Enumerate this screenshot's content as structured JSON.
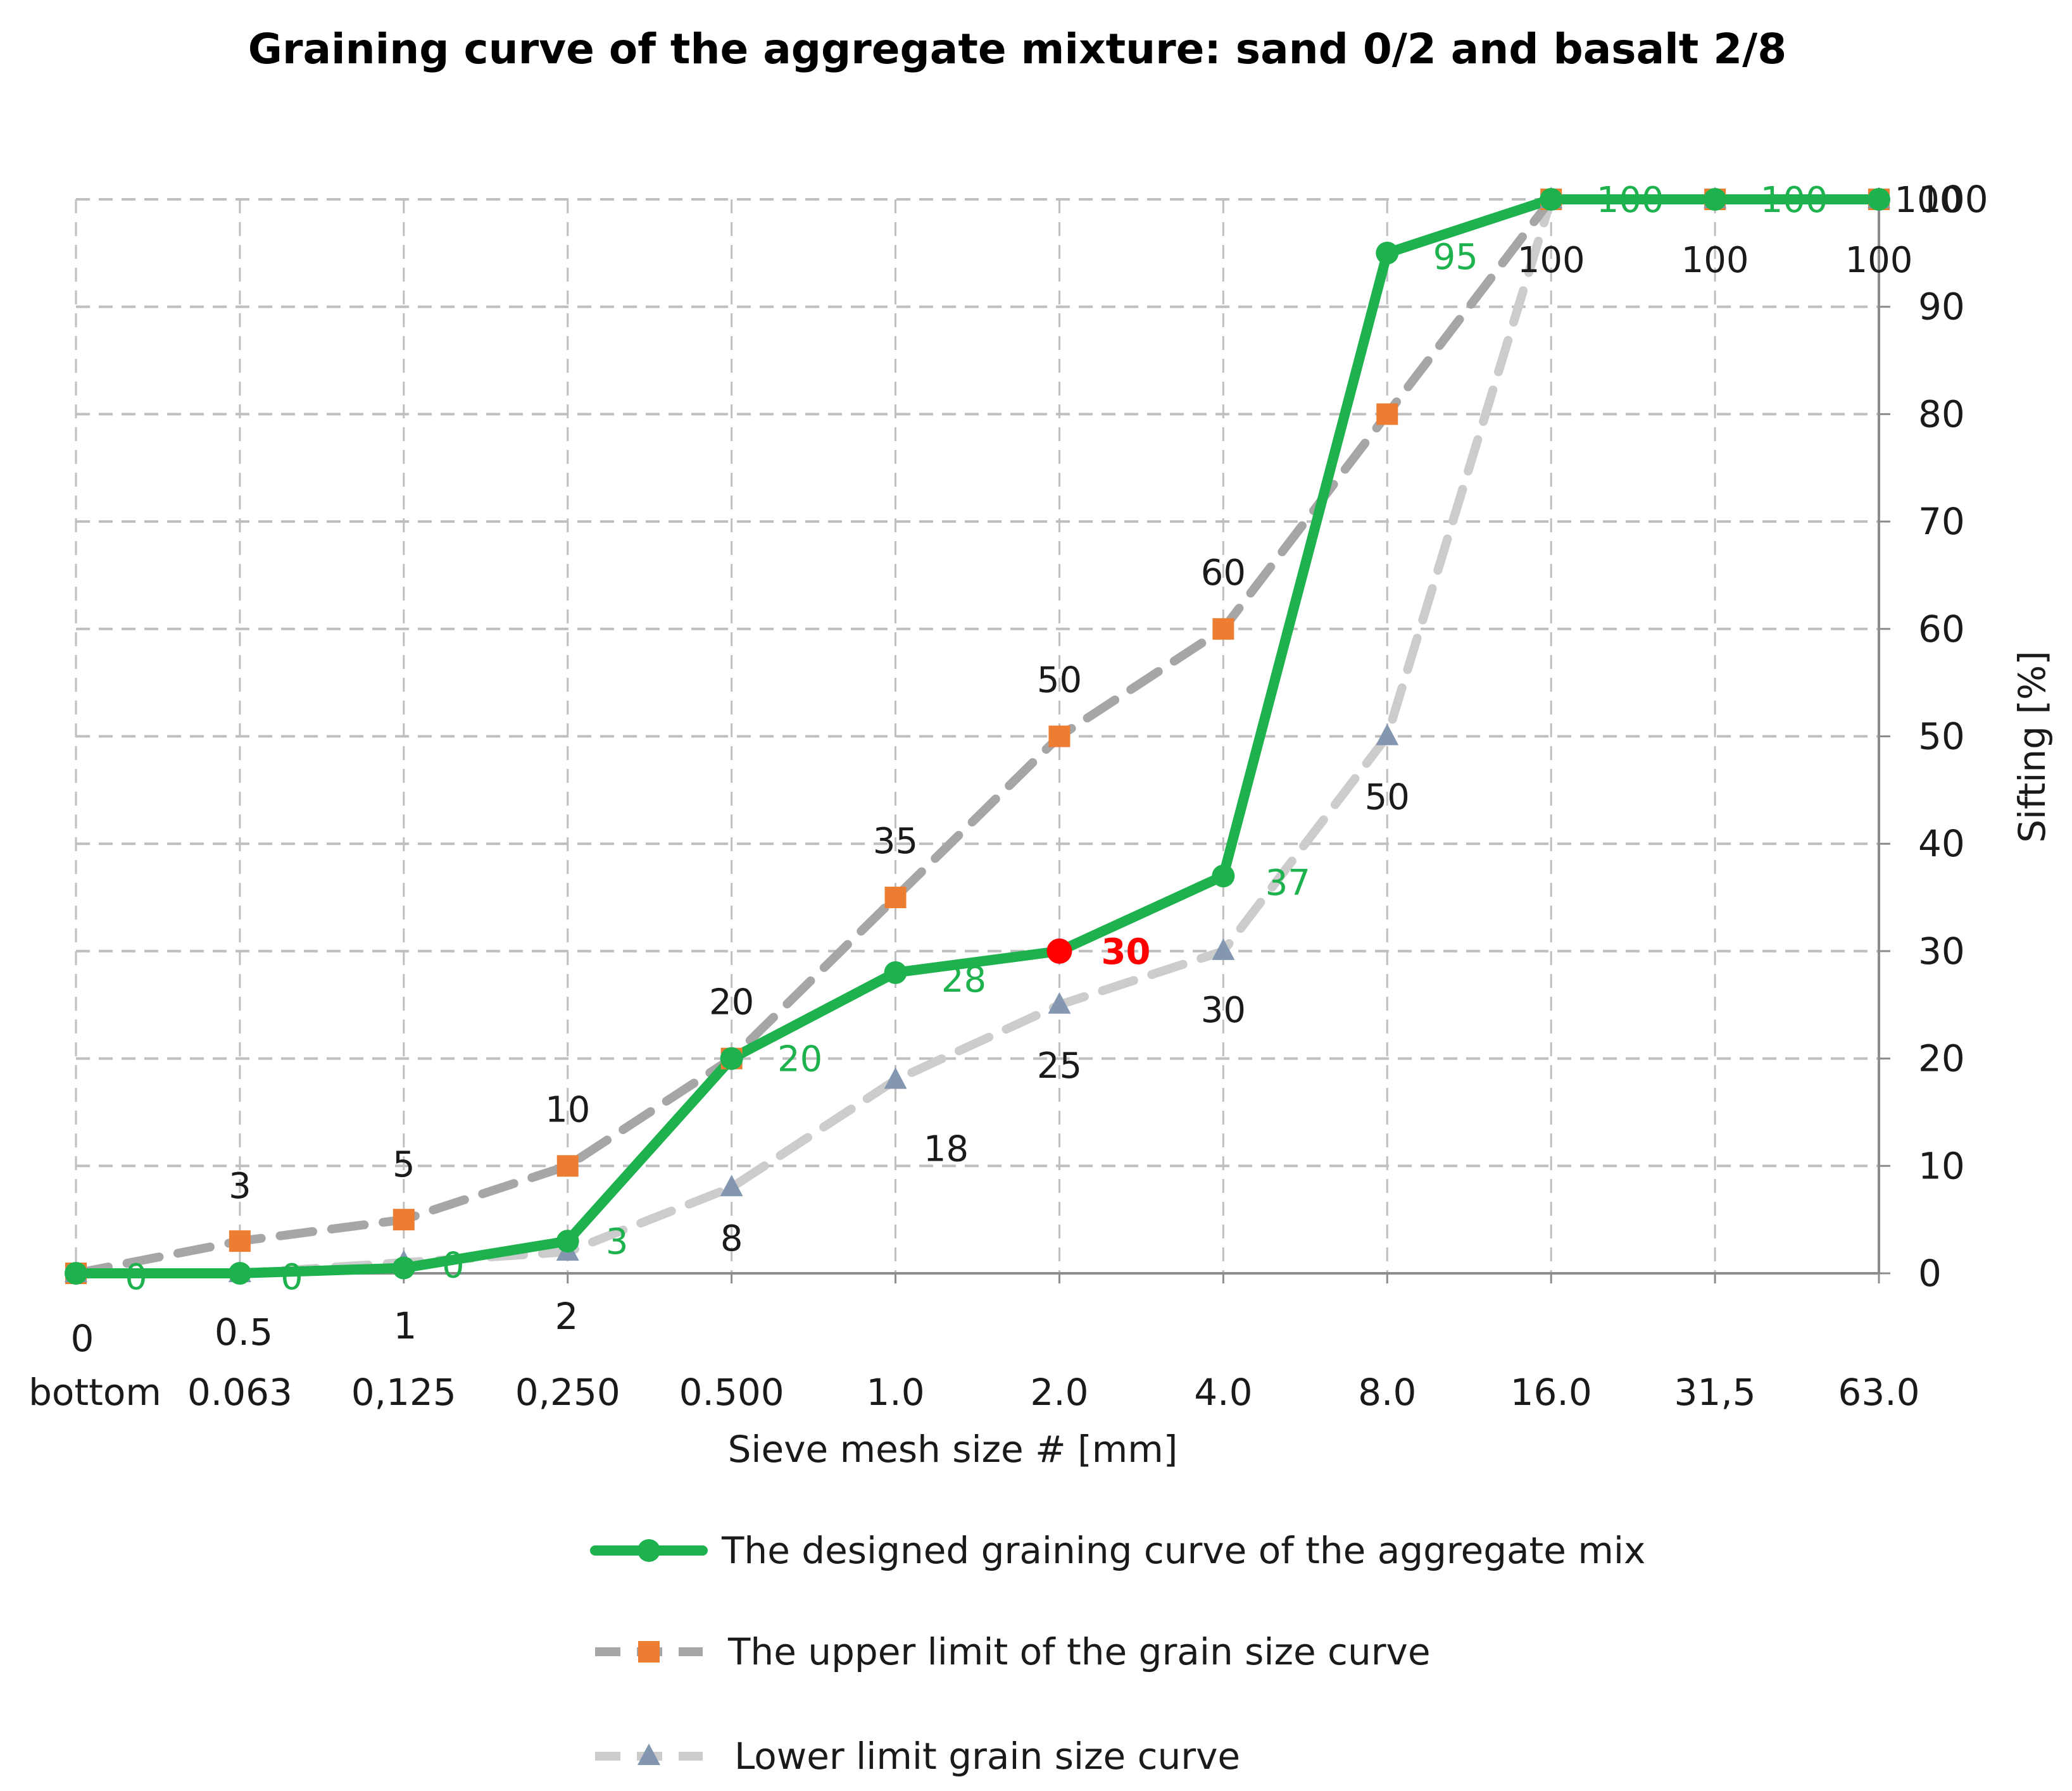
{
  "chart_data": {
    "type": "line",
    "title": "Graining curve of the aggregate mixture: sand 0/2 and basalt 2/8",
    "xlabel": "Sieve mesh size # [mm]",
    "ylabel": "Sifting [%]",
    "ylim": [
      0,
      100
    ],
    "yticks": [
      0,
      10,
      20,
      30,
      40,
      50,
      60,
      70,
      80,
      90,
      100
    ],
    "grid": true,
    "legend_position": "bottom",
    "categories": [
      "bottom",
      "0.063",
      "0,125",
      "0,250",
      "0.500",
      "1.0",
      "2.0",
      "4.0",
      "8.0",
      "16.0",
      "31,5",
      "63.0"
    ],
    "category_index_labels": [
      "0",
      "0.5",
      "1",
      "2"
    ],
    "series": [
      {
        "name": "The designed graining curve of the aggregate mix",
        "color": "#1db24d",
        "marker": "circle",
        "style": "solid",
        "values": [
          0,
          0,
          0.5,
          3,
          20,
          28,
          30,
          37,
          95,
          100,
          100,
          100
        ],
        "labels": [
          "0",
          "0",
          "0",
          "3",
          "20",
          "28",
          "30",
          "37",
          "95",
          "100",
          "100",
          ""
        ],
        "highlight": {
          "index": 6,
          "color": "#ff0000"
        }
      },
      {
        "name": "The upper limit of the grain size curve",
        "color": "#a6a6a6",
        "marker_color": "#ed7d31",
        "marker": "square",
        "style": "dashed",
        "values": [
          0,
          3,
          5,
          10,
          20,
          35,
          50,
          60,
          80,
          100,
          100,
          100
        ],
        "labels": [
          "",
          "3",
          "5",
          "10",
          "20",
          "35",
          "50",
          "60",
          "",
          "",
          "",
          "100"
        ]
      },
      {
        "name": "Lower limit grain size curve",
        "color": "#cccccc",
        "marker_color": "#8497b0",
        "marker": "triangle",
        "style": "dashed",
        "values": [
          0,
          0,
          1,
          2,
          8,
          18,
          25,
          30,
          50,
          100,
          100,
          100
        ],
        "labels": [
          "",
          "",
          "",
          "",
          "8",
          "18",
          "25",
          "30",
          "50",
          "100",
          "100",
          "100"
        ]
      }
    ]
  }
}
